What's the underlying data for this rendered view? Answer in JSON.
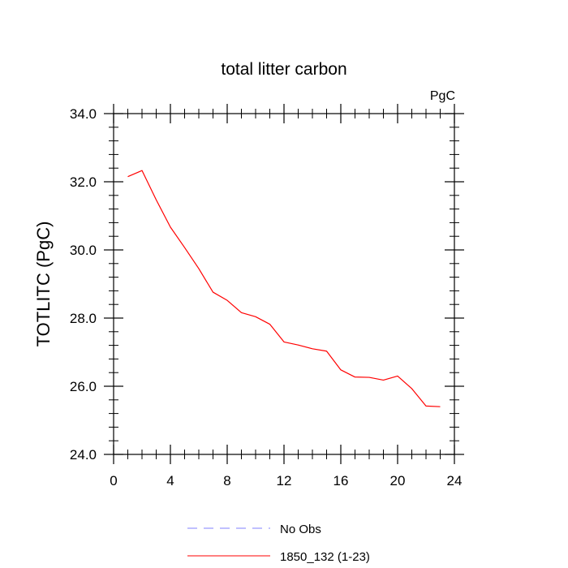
{
  "chart_data": {
    "type": "line",
    "title": "total litter carbon",
    "units_label": "PgC",
    "ylabel": "TOTLITC  (PgC)",
    "xlabel": "",
    "xlim": [
      0,
      24
    ],
    "ylim": [
      24,
      34
    ],
    "x_ticks": [
      0,
      4,
      8,
      12,
      16,
      20,
      24
    ],
    "y_ticks": [
      24,
      26,
      28,
      30,
      32,
      34
    ],
    "x_tick_labels": [
      "0",
      "4",
      "8",
      "12",
      "16",
      "20",
      "24"
    ],
    "y_tick_labels": [
      "24.0",
      "26.0",
      "28.0",
      "30.0",
      "32.0",
      "34.0"
    ],
    "grid": false,
    "legend_position": "bottom",
    "series": [
      {
        "name": "1850_132 (1-23)",
        "color": "#ff0000",
        "dash": "solid",
        "x": [
          1,
          2,
          3,
          4,
          5,
          6,
          7,
          8,
          9,
          10,
          11,
          12,
          13,
          14,
          15,
          16,
          17,
          18,
          19,
          20,
          21,
          22,
          23
        ],
        "y": [
          32.15,
          32.33,
          31.47,
          30.67,
          30.07,
          29.45,
          28.76,
          28.52,
          28.16,
          28.04,
          27.82,
          27.3,
          27.21,
          27.1,
          27.03,
          26.48,
          26.27,
          26.26,
          26.18,
          26.3,
          25.93,
          25.42,
          25.4
        ]
      }
    ],
    "legend": [
      {
        "label": "No Obs",
        "color": "#8080ff",
        "dash": "dashed"
      },
      {
        "label": "1850_132 (1-23)",
        "color": "#ff0000",
        "dash": "solid"
      }
    ]
  }
}
